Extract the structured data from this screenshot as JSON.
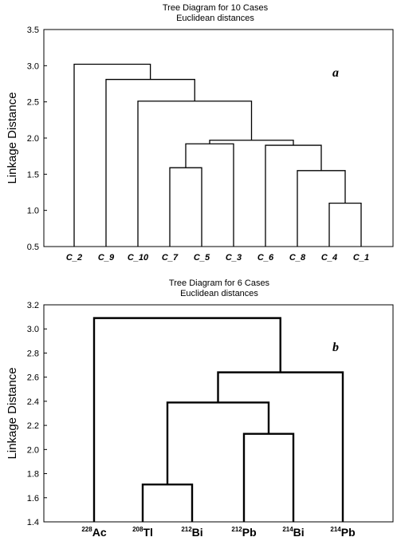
{
  "chart_data": [
    {
      "type": "dendrogram",
      "title": "Tree Diagram for 10 Cases",
      "subtitle": "Euclidean distances",
      "panel_label": "a",
      "xlabel": "",
      "ylabel": "Linkage Distance",
      "ylim": [
        0.5,
        3.5
      ],
      "yticks": [
        "0.5",
        "1.0",
        "1.5",
        "2.0",
        "2.5",
        "3.0",
        "3.5"
      ],
      "leaves": [
        {
          "label": "C_2"
        },
        {
          "label": "C_9"
        },
        {
          "label": "C_10"
        },
        {
          "label": "C_7"
        },
        {
          "label": "C_5"
        },
        {
          "label": "C_3"
        },
        {
          "label": "C_6"
        },
        {
          "label": "C_8"
        },
        {
          "label": "C_4"
        },
        {
          "label": "C_1"
        }
      ],
      "merges": [
        {
          "left": "L8",
          "right": "L9",
          "height": 1.1
        },
        {
          "left": "L7",
          "right": "M0",
          "height": 1.55
        },
        {
          "left": "L6",
          "right": "M1",
          "height": 1.9
        },
        {
          "left": "L3",
          "right": "L4",
          "height": 1.59
        },
        {
          "left": "M3",
          "right": "L5",
          "height": 1.92
        },
        {
          "left": "M4",
          "right": "M2",
          "height": 1.97
        },
        {
          "left": "L2",
          "right": "M5",
          "height": 2.51
        },
        {
          "left": "L1",
          "right": "M6",
          "height": 2.81
        },
        {
          "left": "L0",
          "right": "M7",
          "height": 3.02
        }
      ]
    },
    {
      "type": "dendrogram",
      "title": "Tree Diagram for  6 Cases",
      "subtitle": "Euclidean distances",
      "panel_label": "b",
      "xlabel": "",
      "ylabel": "Linkage Distance",
      "ylim": [
        1.4,
        3.2
      ],
      "yticks": [
        "1.4",
        "1.6",
        "1.8",
        "2.0",
        "2.2",
        "2.4",
        "2.6",
        "2.8",
        "3.0",
        "3.2"
      ],
      "leaves": [
        {
          "sup": "228",
          "el": "Ac"
        },
        {
          "sup": "208",
          "el": "Tl"
        },
        {
          "sup": "212",
          "el": "Bi"
        },
        {
          "sup": "212",
          "el": "Pb"
        },
        {
          "sup": "214",
          "el": "Bi"
        },
        {
          "sup": "214",
          "el": "Pb"
        }
      ],
      "merges": [
        {
          "left": "L1",
          "right": "L2",
          "height": 1.71
        },
        {
          "left": "L3",
          "right": "L4",
          "height": 2.13
        },
        {
          "left": "M0",
          "right": "M1",
          "height": 2.39
        },
        {
          "left": "M2",
          "right": "L5",
          "height": 2.64
        },
        {
          "left": "L0",
          "right": "M3",
          "height": 3.09
        }
      ]
    }
  ]
}
